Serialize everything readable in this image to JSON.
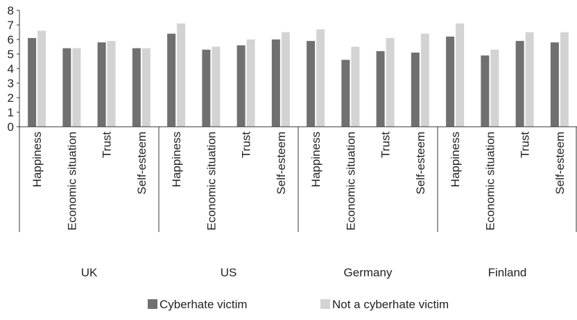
{
  "chart_data": {
    "type": "bar",
    "groups": [
      "UK",
      "US",
      "Germany",
      "Finland"
    ],
    "categories": [
      "Happiness",
      "Economic situation",
      "Trust",
      "Self-esteem"
    ],
    "series": [
      {
        "name": "Cyberhate victim",
        "color": "#707070",
        "values": [
          [
            6.1,
            5.4,
            5.8,
            5.4
          ],
          [
            6.4,
            5.3,
            5.6,
            6.0
          ],
          [
            5.9,
            4.6,
            5.2,
            5.1
          ],
          [
            6.2,
            4.9,
            5.9,
            5.8
          ]
        ]
      },
      {
        "name": "Not a cyberhate victim",
        "color": "#d3d3d3",
        "values": [
          [
            6.6,
            5.4,
            5.9,
            5.4
          ],
          [
            7.1,
            5.5,
            6.0,
            6.5
          ],
          [
            6.7,
            5.5,
            6.1,
            6.4
          ],
          [
            7.1,
            5.3,
            6.5,
            6.5
          ]
        ]
      }
    ],
    "ylim": [
      0,
      8
    ],
    "yticks": [
      "0",
      "1",
      "2",
      "3",
      "4",
      "5",
      "6",
      "7",
      "8"
    ],
    "grid": false,
    "legend_position": "bottom"
  }
}
